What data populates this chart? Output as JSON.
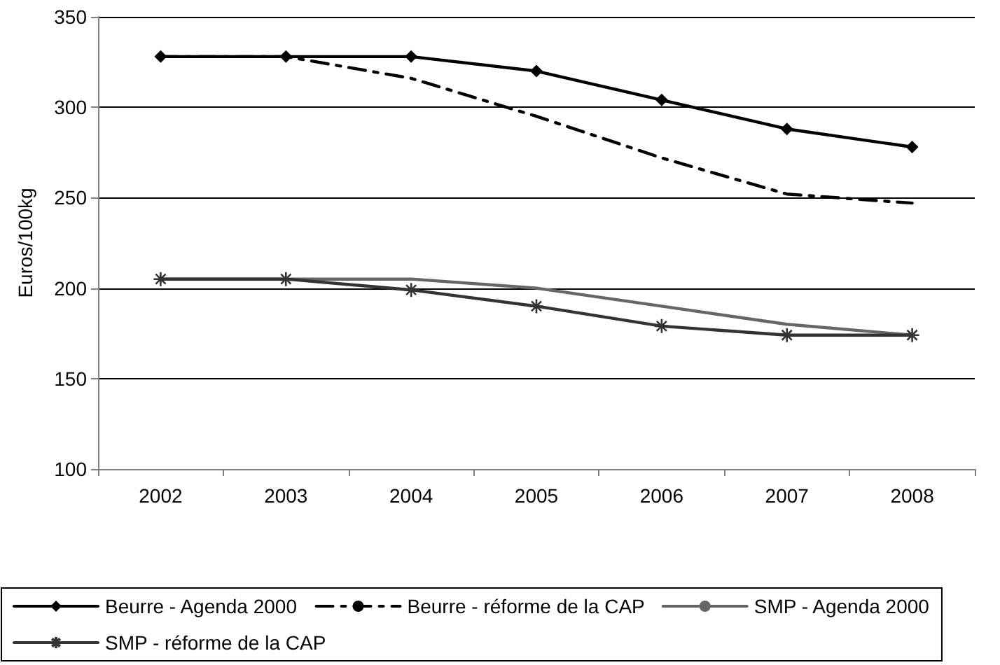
{
  "chart_data": {
    "type": "line",
    "ylabel": "Euros/100kg",
    "categories": [
      "2002",
      "2003",
      "2004",
      "2005",
      "2006",
      "2007",
      "2008"
    ],
    "ylim": [
      100,
      350
    ],
    "yticks": [
      100,
      150,
      200,
      250,
      300,
      350
    ],
    "grid": "y",
    "legend": "bottom",
    "series": [
      {
        "name": "Beurre - Agenda 2000",
        "color": "#000000",
        "marker": "diamond",
        "line_style": "solid",
        "values": [
          328,
          328,
          328,
          320,
          304,
          288,
          278
        ]
      },
      {
        "name": "Beurre - réforme de la CAP",
        "color": "#000000",
        "marker": "none",
        "line_style": "dashed",
        "values": [
          328,
          328,
          316,
          295,
          272,
          252,
          247
        ]
      },
      {
        "name": "SMP - Agenda 2000",
        "color": "#666666",
        "marker": "none",
        "line_style": "solid",
        "values": [
          205,
          205,
          205,
          200,
          190,
          180,
          174
        ]
      },
      {
        "name": "SMP - réforme de la CAP",
        "color": "#333333",
        "marker": "cross",
        "line_style": "solid",
        "values": [
          205,
          205,
          199,
          190,
          179,
          174,
          174
        ]
      }
    ]
  }
}
